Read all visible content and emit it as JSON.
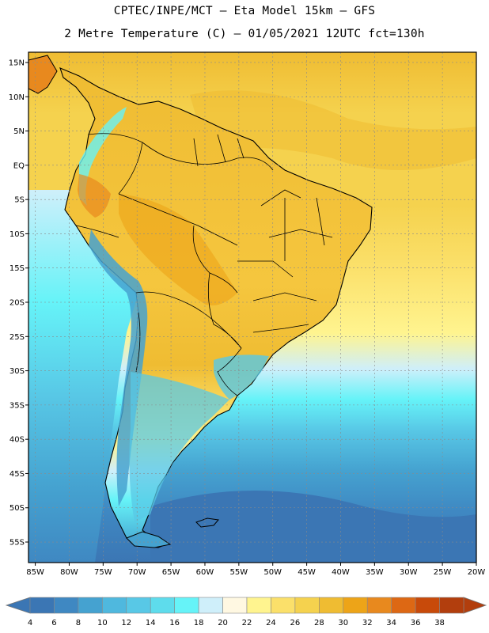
{
  "header": {
    "title": "CPTEC/INPE/MCT –  Eta Model 15km – GFS",
    "subtitle": "2 Metre Temperature (C) – 01/05/2021 12UTC fct=130h"
  },
  "axes": {
    "lat_labels": [
      "15N",
      "10N",
      "5N",
      "EQ",
      "5S",
      "10S",
      "15S",
      "20S",
      "25S",
      "30S",
      "35S",
      "40S",
      "45S",
      "50S",
      "55S"
    ],
    "lat_values": [
      15,
      10,
      5,
      0,
      -5,
      -10,
      -15,
      -20,
      -25,
      -30,
      -35,
      -40,
      -45,
      -50,
      -55
    ],
    "lon_labels": [
      "85W",
      "80W",
      "75W",
      "70W",
      "65W",
      "60W",
      "55W",
      "50W",
      "45W",
      "40W",
      "35W",
      "30W",
      "25W",
      "20W"
    ],
    "lon_values": [
      -85,
      -80,
      -75,
      -70,
      -65,
      -60,
      -55,
      -50,
      -45,
      -40,
      -35,
      -30,
      -25,
      -20
    ],
    "lat_range": [
      -58,
      16.5
    ],
    "lon_range": [
      -86,
      -20
    ]
  },
  "colorbar": {
    "labels": [
      "4",
      "6",
      "8",
      "10",
      "12",
      "14",
      "16",
      "18",
      "20",
      "22",
      "24",
      "26",
      "28",
      "30",
      "32",
      "34",
      "36",
      "38"
    ],
    "colors": [
      "#3b76b4",
      "#3f88c2",
      "#45a2d0",
      "#4fb8de",
      "#58c8e6",
      "#5edcec",
      "#66f3f8",
      "#cfeffa",
      "#fff8e2",
      "#fff48f",
      "#fbe06a",
      "#f5d24e",
      "#efbc32",
      "#eda418",
      "#e8891e",
      "#dd6814",
      "#c84a0a",
      "#b23e0d"
    ],
    "end_left_color": "#3b76b4",
    "end_right_color": "#b23e0d"
  },
  "map": {
    "variable": "2 Metre Temperature",
    "units": "C"
  }
}
